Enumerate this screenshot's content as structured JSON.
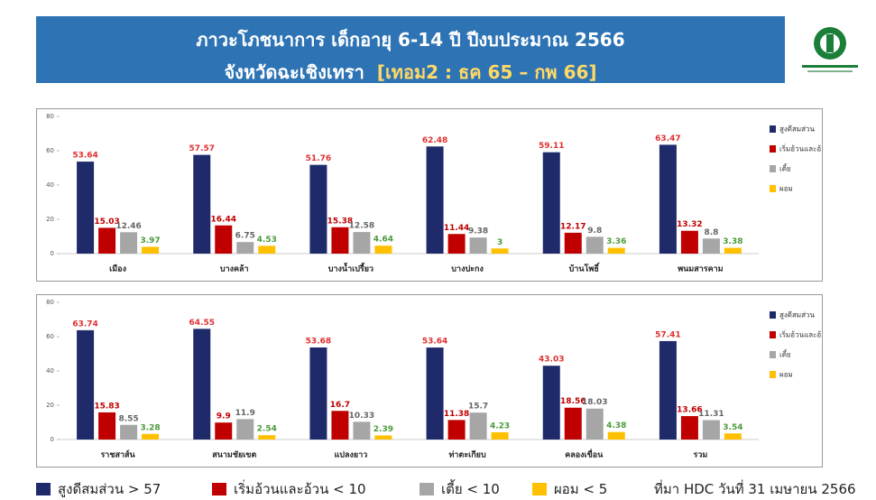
{
  "header": {
    "title": "ภาวะโภชนาการ เด็กอายุ 6-14 ปี ปีงบประมาณ 2566",
    "subtitle": "จังหวัดฉะเชิงเทรา",
    "period": "[เทอม2 : ธค 65 – กพ 66]"
  },
  "chart_data": [
    {
      "type": "bar",
      "categories": [
        "เมือง",
        "บางคล้า",
        "บางน้ำเปรี้ยว",
        "บางปะกง",
        "บ้านโพธิ์",
        "พนมสารคาม"
      ],
      "series": [
        {
          "name": "สูงดีสมส่วน",
          "color": "#1f2a6b",
          "values": [
            53.64,
            57.57,
            51.76,
            62.48,
            59.11,
            63.47
          ]
        },
        {
          "name": "เริ่มอ้วนและอ้วน",
          "color": "#c00000",
          "values": [
            15.03,
            16.44,
            15.38,
            11.44,
            12.17,
            13.32
          ]
        },
        {
          "name": "เตี้ย",
          "color": "#a6a6a6",
          "values": [
            12.46,
            6.75,
            12.58,
            9.38,
            9.8,
            8.8
          ]
        },
        {
          "name": "ผอม",
          "color": "#ffc000",
          "values": [
            3.97,
            4.53,
            4.64,
            3,
            3.36,
            3.38
          ]
        }
      ],
      "ylim": [
        0,
        80
      ],
      "yticks": [
        0,
        20,
        40,
        60,
        80
      ],
      "legend": "right"
    },
    {
      "type": "bar",
      "categories": [
        "ราชสาส์น",
        "สนามชัยเขต",
        "แปลงยาว",
        "ท่าตะเกียบ",
        "คลองเขื่อน",
        "รวม"
      ],
      "series": [
        {
          "name": "สูงดีสมส่วน",
          "color": "#1f2a6b",
          "values": [
            63.74,
            64.55,
            53.68,
            53.64,
            43.03,
            57.41
          ]
        },
        {
          "name": "เริ่มอ้วนและอ้วน",
          "color": "#c00000",
          "values": [
            15.83,
            9.9,
            16.7,
            11.38,
            18.56,
            13.66
          ]
        },
        {
          "name": "เตี้ย",
          "color": "#a6a6a6",
          "values": [
            8.55,
            11.9,
            10.33,
            15.7,
            18.03,
            11.31
          ]
        },
        {
          "name": "ผอม",
          "color": "#ffc000",
          "values": [
            3.28,
            2.54,
            2.39,
            4.23,
            4.38,
            3.54
          ]
        }
      ],
      "ylim": [
        0,
        80
      ],
      "yticks": [
        0,
        20,
        40,
        60,
        80
      ],
      "legend": "right"
    }
  ],
  "footer": {
    "legend": [
      "สูงดีสมส่วน > 57",
      "เริ่มอ้วนและอ้วน < 10",
      "เตี้ย < 10",
      "ผอม < 5"
    ],
    "source": "ที่มา HDC วันที่ 31 เมษายน 2566"
  }
}
